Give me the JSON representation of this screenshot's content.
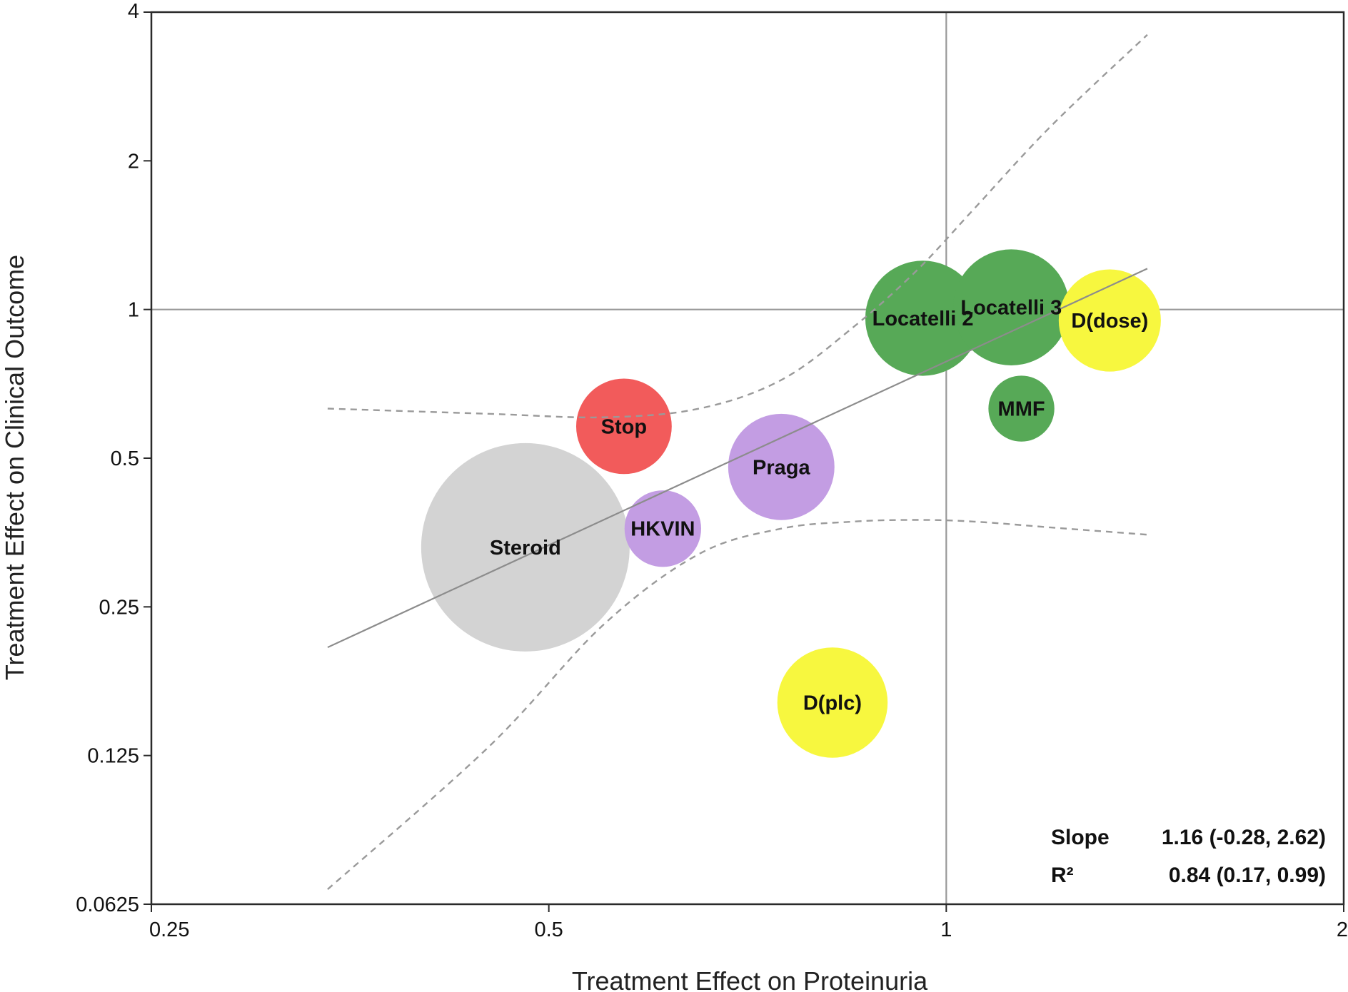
{
  "chart_data": {
    "type": "scatter",
    "subtype": "bubble",
    "xlabel": "Treatment Effect on Proteinuria",
    "ylabel": "Treatment Effect on Clinical Outcome",
    "xscale": "log2",
    "yscale": "log2",
    "xlim": [
      0.25,
      2
    ],
    "ylim": [
      0.0625,
      4
    ],
    "xticks": [
      "0.25",
      "0.5",
      "1",
      "2"
    ],
    "yticks": [
      "0.0625",
      "0.125",
      "0.25",
      "0.5",
      "1",
      "2",
      "4"
    ],
    "reference_lines": {
      "x": 1,
      "y": 1
    },
    "points": [
      {
        "label": "Steroid",
        "x": 0.48,
        "y": 0.33,
        "weight": 1.0,
        "color": "#d3d3d3"
      },
      {
        "label": "Stop",
        "x": 0.57,
        "y": 0.58,
        "weight": 0.21,
        "color": "#f25b5b"
      },
      {
        "label": "Praga",
        "x": 0.75,
        "y": 0.48,
        "weight": 0.26,
        "color": "#c39de3"
      },
      {
        "label": "HKVIN",
        "x": 0.61,
        "y": 0.36,
        "weight": 0.135,
        "color": "#c39de3"
      },
      {
        "label": "D(plc)",
        "x": 0.82,
        "y": 0.16,
        "weight": 0.28,
        "color": "#f7f73f"
      },
      {
        "label": "Locatelli 2",
        "x": 0.96,
        "y": 0.96,
        "weight": 0.305,
        "color": "#57a957"
      },
      {
        "label": "Locatelli 3",
        "x": 1.12,
        "y": 1.01,
        "weight": 0.31,
        "color": "#57a957"
      },
      {
        "label": "D(dose)",
        "x": 1.33,
        "y": 0.95,
        "weight": 0.24,
        "color": "#f7f73f"
      },
      {
        "label": "MMF",
        "x": 1.14,
        "y": 0.63,
        "weight": 0.1,
        "color": "#57a957"
      }
    ],
    "regression": {
      "x_range": [
        0.34,
        1.42
      ],
      "line": [
        [
          0.34,
          0.207
        ],
        [
          1.42,
          1.21
        ]
      ],
      "ci_upper": [
        [
          0.34,
          0.63
        ],
        [
          0.45,
          0.615
        ],
        [
          0.55,
          0.605
        ],
        [
          0.65,
          0.63
        ],
        [
          0.75,
          0.72
        ],
        [
          0.85,
          0.92
        ],
        [
          0.95,
          1.2
        ],
        [
          1.05,
          1.6
        ],
        [
          1.2,
          2.35
        ],
        [
          1.42,
          3.6
        ]
      ],
      "ci_lower": [
        [
          0.34,
          0.067
        ],
        [
          0.45,
          0.13
        ],
        [
          0.55,
          0.23
        ],
        [
          0.65,
          0.32
        ],
        [
          0.75,
          0.36
        ],
        [
          0.85,
          0.372
        ],
        [
          0.95,
          0.375
        ],
        [
          1.05,
          0.372
        ],
        [
          1.2,
          0.362
        ],
        [
          1.42,
          0.35
        ]
      ]
    },
    "stats": {
      "slope_label": "Slope",
      "slope_value": "1.16 (-0.28, 2.62)",
      "r2_label": "R²",
      "r2_value": "0.84 (0.17, 0.99)"
    },
    "colors": {
      "frame": "#2a2a2a",
      "reference": "#999999",
      "regression": "#8c8c8c",
      "ci": "#9a9a9a"
    }
  }
}
